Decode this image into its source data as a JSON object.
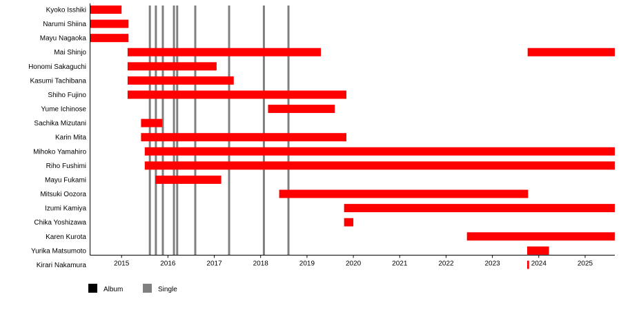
{
  "chart_data": {
    "type": "timeline",
    "xlim": [
      2014.32,
      2025.64
    ],
    "x_ticks": [
      2015,
      2016,
      2017,
      2018,
      2019,
      2020,
      2021,
      2022,
      2023,
      2024,
      2025
    ],
    "grid": false,
    "bar_color": "#ff0000",
    "members": [
      {
        "name": "Kyoko Isshiki",
        "periods": [
          [
            2014.32,
            2015.0
          ]
        ]
      },
      {
        "name": "Narumi Shiina",
        "periods": [
          [
            2014.32,
            2015.15
          ]
        ]
      },
      {
        "name": "Mayu Nagaoka",
        "periods": [
          [
            2014.32,
            2015.15
          ]
        ]
      },
      {
        "name": "Mai Shinjo",
        "periods": [
          [
            2015.13,
            2019.3
          ],
          [
            2023.76,
            2025.64
          ]
        ]
      },
      {
        "name": "Honomi Sakaguchi",
        "periods": [
          [
            2015.13,
            2017.05
          ]
        ]
      },
      {
        "name": "Kasumi Tachibana",
        "periods": [
          [
            2015.13,
            2017.42
          ]
        ]
      },
      {
        "name": "Shiho Fujino",
        "periods": [
          [
            2015.13,
            2019.85
          ]
        ]
      },
      {
        "name": "Yume Ichinose",
        "periods": [
          [
            2018.16,
            2019.6
          ]
        ]
      },
      {
        "name": "Sachika Mizutani",
        "periods": [
          [
            2015.42,
            2015.88
          ]
        ]
      },
      {
        "name": "Karin Mita",
        "periods": [
          [
            2015.42,
            2019.85
          ]
        ]
      },
      {
        "name": "Mihoko Yamahiro",
        "periods": [
          [
            2015.5,
            2025.64
          ]
        ]
      },
      {
        "name": "Riho Fushimi",
        "periods": [
          [
            2015.5,
            2025.64
          ]
        ]
      },
      {
        "name": "Mayu Fukami",
        "periods": [
          [
            2015.73,
            2017.15
          ]
        ]
      },
      {
        "name": "Mitsuki Oozora",
        "periods": [
          [
            2018.4,
            2023.77
          ]
        ]
      },
      {
        "name": "Izumi Kamiya",
        "periods": [
          [
            2019.8,
            2025.64
          ]
        ]
      },
      {
        "name": "Chika Yoshizawa",
        "periods": [
          [
            2019.8,
            2020.0
          ]
        ]
      },
      {
        "name": "Karen Kurota",
        "periods": [
          [
            2022.45,
            2025.64
          ]
        ]
      },
      {
        "name": "Yurika Matsumoto",
        "periods": [
          [
            2023.75,
            2024.22
          ]
        ]
      },
      {
        "name": "Kirari Nakamura",
        "periods": [
          [
            2023.75,
            2023.79
          ]
        ]
      }
    ],
    "releases": {
      "Single": [
        2015.61,
        2015.74,
        2015.89,
        2016.13,
        2016.2,
        2016.59,
        2017.32,
        2018.07,
        2018.6
      ],
      "Album": []
    },
    "legend": {
      "placement": "bottom-left",
      "items": [
        {
          "label": "Album",
          "color": "#000000"
        },
        {
          "label": "Single",
          "color": "#808080"
        }
      ]
    }
  }
}
